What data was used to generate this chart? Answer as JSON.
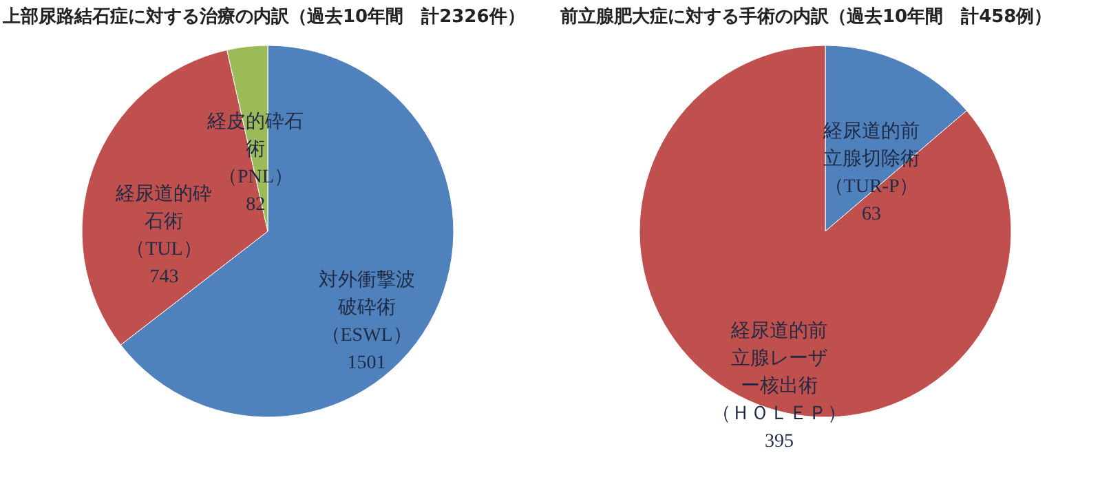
{
  "chart_data": [
    {
      "type": "pie",
      "title": "上部尿路結石症に対する治療の内訳（過去10年間　計2326件）",
      "categories": [
        "対外衝撃波破砕術（ESWL）",
        "経尿道的砕石術（TUL）",
        "経皮的砕石術（PNL）"
      ],
      "values": [
        1501,
        743,
        82
      ],
      "colors": [
        "#4f81bd",
        "#c0504d",
        "#9bbb59"
      ],
      "data_labels": true
    },
    {
      "type": "pie",
      "title": "前立腺肥大症に対する手術の内訳（過去10年間　計458例）",
      "categories": [
        "経尿道的前立腺切除術（TUR-P）",
        "経尿道的前立腺レーザー核出術（ＨＯＬＥＰ）"
      ],
      "values": [
        63,
        395
      ],
      "colors": [
        "#4f81bd",
        "#c0504d"
      ],
      "data_labels": true
    }
  ]
}
